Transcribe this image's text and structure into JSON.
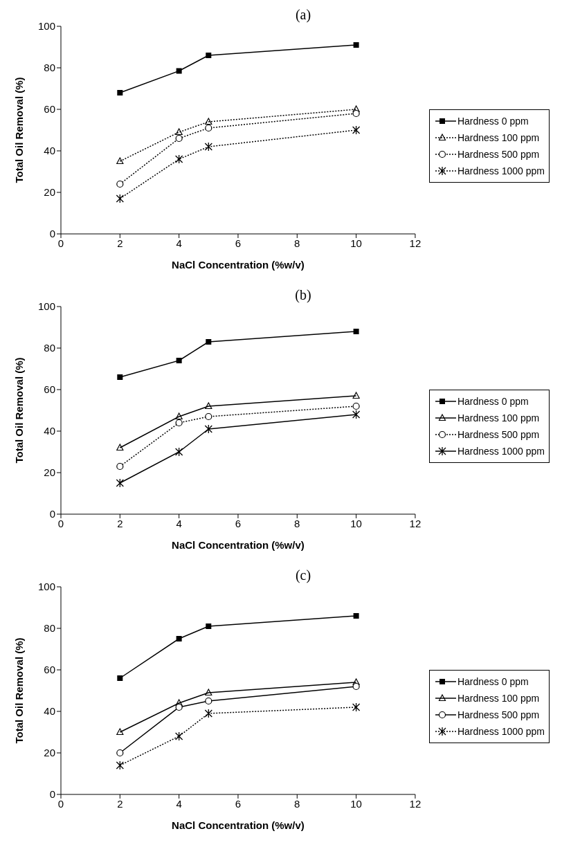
{
  "chart_data": [
    {
      "type": "line",
      "title": "(a)",
      "xlabel": "NaCl Concentration (%w/v)",
      "ylabel": "Total Oil Removal (%)",
      "x": [
        2,
        4,
        5,
        10
      ],
      "xlim": [
        0,
        12
      ],
      "xticks": [
        0,
        2,
        4,
        6,
        8,
        10,
        12
      ],
      "ylim": [
        0,
        100
      ],
      "yticks": [
        0,
        20,
        40,
        60,
        80,
        100
      ],
      "grid": false,
      "legend": "right",
      "series": [
        {
          "name": "Hardness 0 ppm",
          "color": "#000000",
          "marker": "square",
          "line_style": "solid",
          "values": [
            68,
            78.5,
            86,
            91
          ]
        },
        {
          "name": "Hardness 100 ppm",
          "color": "#000000",
          "marker": "triangle",
          "line_style": "dotted",
          "values": [
            35,
            49,
            54,
            60
          ]
        },
        {
          "name": "Hardness 500 ppm",
          "color": "#000000",
          "marker": "circle",
          "line_style": "dotted",
          "values": [
            24,
            46,
            51,
            58
          ]
        },
        {
          "name": "Hardness 1000 ppm",
          "color": "#000000",
          "marker": "cross",
          "line_style": "dotted",
          "values": [
            17,
            36,
            42,
            50
          ]
        }
      ]
    },
    {
      "type": "line",
      "title": "(b)",
      "xlabel": "NaCl Concentration (%w/v)",
      "ylabel": "Total Oil Removal (%)",
      "x": [
        2,
        4,
        5,
        10
      ],
      "xlim": [
        0,
        12
      ],
      "xticks": [
        0,
        2,
        4,
        6,
        8,
        10,
        12
      ],
      "ylim": [
        0,
        100
      ],
      "yticks": [
        0,
        20,
        40,
        60,
        80,
        100
      ],
      "grid": false,
      "legend": "right",
      "series": [
        {
          "name": "Hardness 0 ppm",
          "color": "#000000",
          "marker": "square",
          "line_style": "solid",
          "values": [
            66,
            74,
            83,
            88
          ]
        },
        {
          "name": "Hardness 100 ppm",
          "color": "#000000",
          "marker": "triangle",
          "line_style": "solid",
          "values": [
            32,
            47,
            52,
            57
          ]
        },
        {
          "name": "Hardness 500 ppm",
          "color": "#000000",
          "marker": "circle",
          "line_style": "dotted",
          "values": [
            23,
            44,
            47,
            52
          ]
        },
        {
          "name": "Hardness 1000 ppm",
          "color": "#000000",
          "marker": "cross",
          "line_style": "solid",
          "values": [
            15,
            30,
            41,
            48
          ]
        }
      ]
    },
    {
      "type": "line",
      "title": "(c)",
      "xlabel": "NaCl Concentration (%w/v)",
      "ylabel": "Total Oil Removal (%)",
      "x": [
        2,
        4,
        5,
        10
      ],
      "xlim": [
        0,
        12
      ],
      "xticks": [
        0,
        2,
        4,
        6,
        8,
        10,
        12
      ],
      "ylim": [
        0,
        100
      ],
      "yticks": [
        0,
        20,
        40,
        60,
        80,
        100
      ],
      "grid": false,
      "legend": "right",
      "series": [
        {
          "name": "Hardness 0 ppm",
          "color": "#000000",
          "marker": "square",
          "line_style": "solid",
          "values": [
            56,
            75,
            81,
            86
          ]
        },
        {
          "name": "Hardness 100 ppm",
          "color": "#000000",
          "marker": "triangle",
          "line_style": "solid",
          "values": [
            30,
            44,
            49,
            54
          ]
        },
        {
          "name": "Hardness 500 ppm",
          "color": "#000000",
          "marker": "circle",
          "line_style": "solid",
          "values": [
            20,
            42,
            45,
            52
          ]
        },
        {
          "name": "Hardness 1000 ppm",
          "color": "#000000",
          "marker": "cross",
          "line_style": "dotted",
          "values": [
            14,
            28,
            39,
            42
          ]
        }
      ]
    }
  ]
}
